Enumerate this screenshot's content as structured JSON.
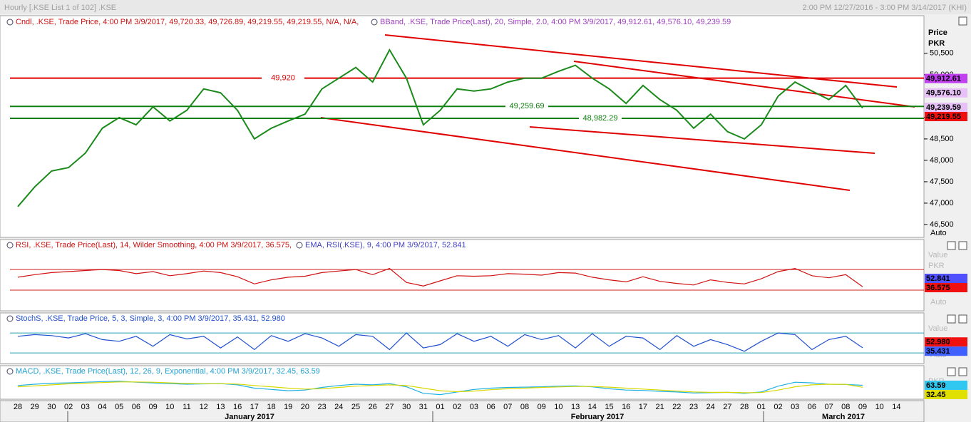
{
  "chart_data": [
    {
      "type": "line",
      "title": "Hourly [.KSE List 1 of 102] .KSE",
      "range_label": "2:00 PM 12/27/2016 - 3:00 PM 3/14/2017 (KHI)",
      "legend": [
        "Cndl, .KSE, Trade Price, 4:00 PM 3/9/2017, 49,720.33, 49,726.89, 49,219.55, 49,219.55, N/A, N/A,",
        "BBand, .KSE, Trade Price(Last), 20, Simple, 2.0, 4:00 PM 3/9/2017, 49,912.61, 49,576.10, 49,239.59"
      ],
      "axis_title": [
        "Price",
        "PKR"
      ],
      "scale_button": "Auto",
      "categories": [
        "28",
        "29",
        "30",
        "02",
        "03",
        "04",
        "05",
        "06",
        "09",
        "10",
        "11",
        "12",
        "13",
        "16",
        "17",
        "18",
        "19",
        "20",
        "23",
        "24",
        "25",
        "26",
        "27",
        "30",
        "31",
        "01",
        "02",
        "03",
        "06",
        "07",
        "08",
        "09",
        "10",
        "13",
        "14",
        "15",
        "16",
        "17",
        "21",
        "22",
        "23",
        "24",
        "27",
        "28",
        "01",
        "02",
        "03",
        "06",
        "07",
        "08",
        "09",
        "10",
        "14"
      ],
      "months": [
        "January 2017",
        "February 2017",
        "March 2017"
      ],
      "values": [
        46920,
        47380,
        47750,
        47830,
        48170,
        48750,
        49000,
        48830,
        49250,
        48920,
        49170,
        49670,
        49580,
        49170,
        48500,
        48750,
        48920,
        49080,
        49670,
        49920,
        50170,
        49830,
        50580,
        49920,
        48830,
        49170,
        49670,
        49620,
        49670,
        49830,
        49920,
        49920,
        50080,
        50220,
        49920,
        49670,
        49330,
        49750,
        49420,
        49170,
        48750,
        49080,
        48670,
        48500,
        48830,
        49500,
        49830,
        49620,
        49420,
        49750,
        49219.55,
        null,
        null
      ],
      "color": "#1a8a1a",
      "ylim": [
        46200,
        51380
      ],
      "yticks": [
        {
          "value": 46500,
          "label": "46,500"
        },
        {
          "value": 47000,
          "label": "47,000"
        },
        {
          "value": 47500,
          "label": "47,500"
        },
        {
          "value": 48000,
          "label": "48,000"
        },
        {
          "value": 48500,
          "label": "48,500"
        },
        {
          "value": 49000,
          "label": "49,000"
        },
        {
          "value": 50000,
          "label": "50,000"
        },
        {
          "value": 50500,
          "label": "50,500"
        }
      ],
      "levels": [
        {
          "value": 49920,
          "label": "49,920",
          "color": "#e00000"
        },
        {
          "value": 49259.69,
          "label": "49,259.69",
          "color": "#108010"
        },
        {
          "value": 48982.29,
          "label": "48,982.29",
          "color": "#108010"
        }
      ],
      "markers": [
        {
          "value": 49912.61,
          "label": "49,912.61",
          "color": "#c040f0"
        },
        {
          "value": 49576.1,
          "label": "49,576.10",
          "color": "#e8c0f8"
        },
        {
          "value": 49239.59,
          "label": "49,239.59",
          "color": "#e8c0f8"
        },
        {
          "value": 49219.55,
          "label": "49,219.55",
          "color": "#f01010"
        }
      ]
    },
    {
      "type": "line",
      "legend": [
        "RSI, .KSE, Trade Price(Last), 14, Wilder Smoothing, 4:00 PM 3/9/2017, 36.575,",
        "EMA, RSI(.KSE), 9, 4:00 PM 3/9/2017, 52.841"
      ],
      "axis_title": [
        "Value",
        "PKR"
      ],
      "scale_button": "Auto",
      "values": [
        55,
        60,
        64,
        66,
        68,
        70,
        68,
        62,
        66,
        58,
        62,
        67,
        64,
        56,
        42,
        50,
        55,
        57,
        64,
        67,
        70,
        60,
        72,
        45,
        38,
        48,
        58,
        57,
        58,
        62,
        61,
        59,
        64,
        63,
        55,
        50,
        46,
        56,
        47,
        43,
        40,
        50,
        45,
        42,
        52,
        66,
        72,
        58,
        54,
        60,
        36.575,
        null,
        null
      ],
      "color": "#d01010",
      "ylim": [
        -10,
        106
      ],
      "levels": [
        70,
        30
      ],
      "level_color": "#d02020",
      "markers": [
        {
          "value": 52.841,
          "label": "52.841",
          "color": "#5050ff"
        },
        {
          "value": 36.575,
          "label": "36.575",
          "color": "#f01010"
        }
      ]
    },
    {
      "type": "line",
      "legend": [
        "StochS, .KSE, Trade Price, 5, 3, Simple, 3, 4:00 PM 3/9/2017, 35.431, 52.980"
      ],
      "axis_title": [
        "Value"
      ],
      "scale_button": "Auto",
      "values": [
        70,
        75,
        72,
        65,
        78,
        60,
        55,
        70,
        40,
        75,
        62,
        70,
        35,
        68,
        30,
        72,
        55,
        78,
        65,
        40,
        75,
        70,
        30,
        80,
        35,
        45,
        78,
        55,
        70,
        40,
        75,
        60,
        72,
        35,
        78,
        40,
        70,
        65,
        30,
        72,
        40,
        60,
        45,
        25,
        55,
        80,
        75,
        30,
        60,
        70,
        35.431,
        null,
        null
      ],
      "color": "#2050d0",
      "ylim": [
        -12,
        106
      ],
      "levels": [
        80,
        20
      ],
      "level_color": "#20a0b0",
      "markers": [
        {
          "value": 52.98,
          "label": "52.980",
          "color": "#f01010"
        },
        {
          "value": 35.431,
          "label": "35.431",
          "color": "#4060ff"
        }
      ]
    },
    {
      "type": "line",
      "legend": [
        "MACD, .KSE, Trade Price(Last), 12, 26, 9, Exponential, 4:00 PM 3/9/2017, 32.45, 63.59"
      ],
      "axis_title": [
        "PKR"
      ],
      "values": [
        60,
        80,
        95,
        100,
        110,
        120,
        125,
        110,
        100,
        90,
        80,
        85,
        90,
        70,
        20,
        0,
        -20,
        -10,
        30,
        60,
        80,
        70,
        90,
        40,
        -60,
        -80,
        -40,
        0,
        20,
        30,
        35,
        40,
        50,
        55,
        40,
        10,
        -10,
        -15,
        -30,
        -40,
        -55,
        -50,
        -45,
        -60,
        -40,
        50,
        110,
        100,
        80,
        75,
        63.59,
        null,
        null
      ],
      "color": "#20b0e0",
      "signal": [
        40,
        55,
        70,
        85,
        95,
        105,
        115,
        115,
        110,
        100,
        92,
        88,
        88,
        82,
        60,
        40,
        20,
        5,
        10,
        30,
        50,
        60,
        70,
        60,
        20,
        -20,
        -35,
        -25,
        -5,
        10,
        20,
        30,
        38,
        45,
        45,
        35,
        20,
        5,
        -10,
        -25,
        -38,
        -45,
        -45,
        -50,
        -48,
        -10,
        40,
        70,
        80,
        78,
        32.45,
        null,
        null
      ],
      "signal_color": "#d8d800",
      "ylim": [
        -150,
        200
      ],
      "markers": [
        {
          "value": 63.59,
          "label": "63.59",
          "color": "#30c8f0"
        },
        {
          "value": 32.45,
          "label": "32.45",
          "color": "#e0e000"
        }
      ]
    }
  ]
}
